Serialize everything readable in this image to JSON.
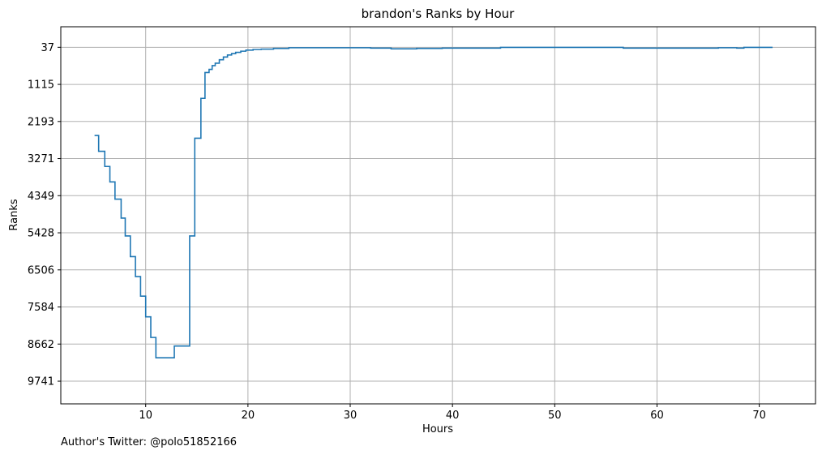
{
  "chart_data": {
    "type": "line",
    "step": true,
    "title": "brandon's Ranks by Hour",
    "xlabel": "Hours",
    "ylabel": "Ranks",
    "xlim": [
      1.7,
      75.5
    ],
    "ylim": [
      10400,
      -560
    ],
    "y_inverted": true,
    "grid": true,
    "legend": "none",
    "x_ticks": [
      10,
      20,
      30,
      40,
      50,
      60,
      70
    ],
    "y_ticks": [
      37,
      1115,
      2193,
      3271,
      4349,
      5428,
      6506,
      7584,
      8662,
      9741
    ],
    "series": [
      {
        "color": "#1f77b4",
        "x": [
          5.0,
          5.4,
          6.0,
          6.5,
          7.0,
          7.6,
          8.0,
          8.5,
          9.0,
          9.5,
          10.0,
          10.5,
          11.0,
          12.8,
          14.3,
          14.8,
          15.4,
          15.8,
          16.2,
          16.5,
          16.8,
          17.2,
          17.6,
          18.0,
          18.4,
          18.8,
          19.3,
          19.8,
          20.5,
          21.3,
          22.5,
          24.0,
          32.0,
          34.0,
          36.5,
          39.0,
          44.7,
          56.7,
          66.0,
          67.8,
          68.5,
          71.3
        ],
        "y": [
          2600,
          3060,
          3500,
          3950,
          4450,
          5000,
          5520,
          6120,
          6700,
          7270,
          7870,
          8470,
          9060,
          8720,
          5520,
          2680,
          1520,
          770,
          680,
          570,
          500,
          400,
          320,
          260,
          220,
          185,
          150,
          120,
          100,
          90,
          70,
          50,
          60,
          80,
          70,
          60,
          40,
          60,
          50,
          60,
          40,
          40
        ]
      }
    ]
  },
  "footer": {
    "author_note": "Author's Twitter: @polo51852166"
  }
}
